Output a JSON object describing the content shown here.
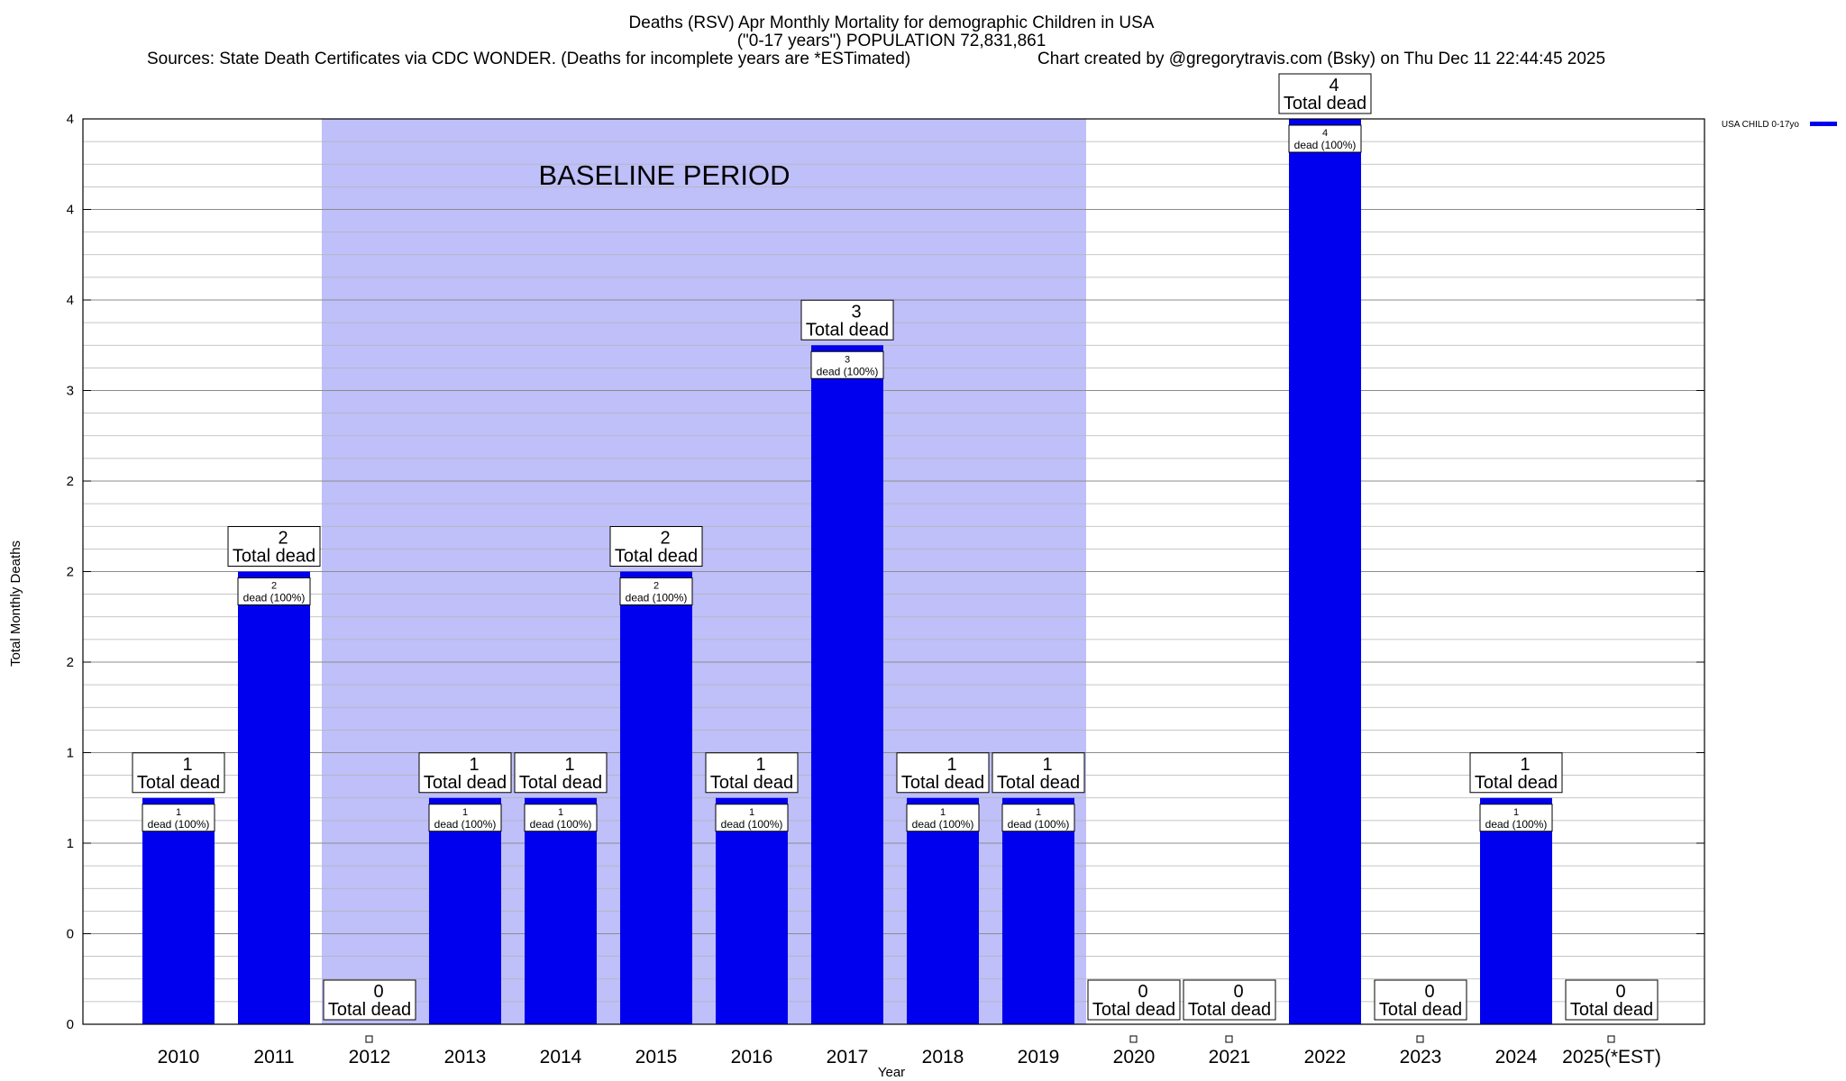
{
  "chart_data": {
    "type": "bar",
    "title_lines": [
      "Deaths (RSV) Apr Monthly Mortality for demographic Children in USA",
      "(\"0-17 years\") POPULATION 72,831,861"
    ],
    "sources_text": "Sources: State Death Certificates via CDC WONDER. (Deaths for incomplete years are *ESTimated)",
    "credit_text": "Chart created by @gregorytravis.com (Bsky) on Thu Dec 11 22:44:45 2025",
    "xlabel": "Year",
    "ylabel": "Total Monthly Deaths",
    "ylim": [
      0,
      4
    ],
    "y_tick_labels": [
      "0",
      "0",
      "1",
      "1",
      "2",
      "2",
      "2",
      "3",
      "4",
      "4",
      "4"
    ],
    "grid": true,
    "categories": [
      "2010",
      "2011",
      "2012",
      "2013",
      "2014",
      "2015",
      "2016",
      "2017",
      "2018",
      "2019",
      "2020",
      "2021",
      "2022",
      "2023",
      "2024",
      "2025(*EST)"
    ],
    "series": [
      {
        "name": "USA CHILD 0-17yo",
        "color": "#0000ee",
        "values": [
          1,
          2,
          0,
          1,
          1,
          2,
          1,
          3,
          1,
          1,
          0,
          0,
          4,
          0,
          1,
          0
        ]
      }
    ],
    "total_labels": [
      "1",
      "2",
      "0",
      "1",
      "1",
      "2",
      "1",
      "3",
      "1",
      "1",
      "0",
      "0",
      "4",
      "0",
      "1",
      "0"
    ],
    "total_suffix": "Total dead",
    "inbar_suffix": "dead (100%)",
    "baseline_period": {
      "label": "BASELINE PERIOD",
      "from": "2012",
      "to": "2019",
      "color": "#bfbff9"
    },
    "legend_position": "top-right"
  }
}
